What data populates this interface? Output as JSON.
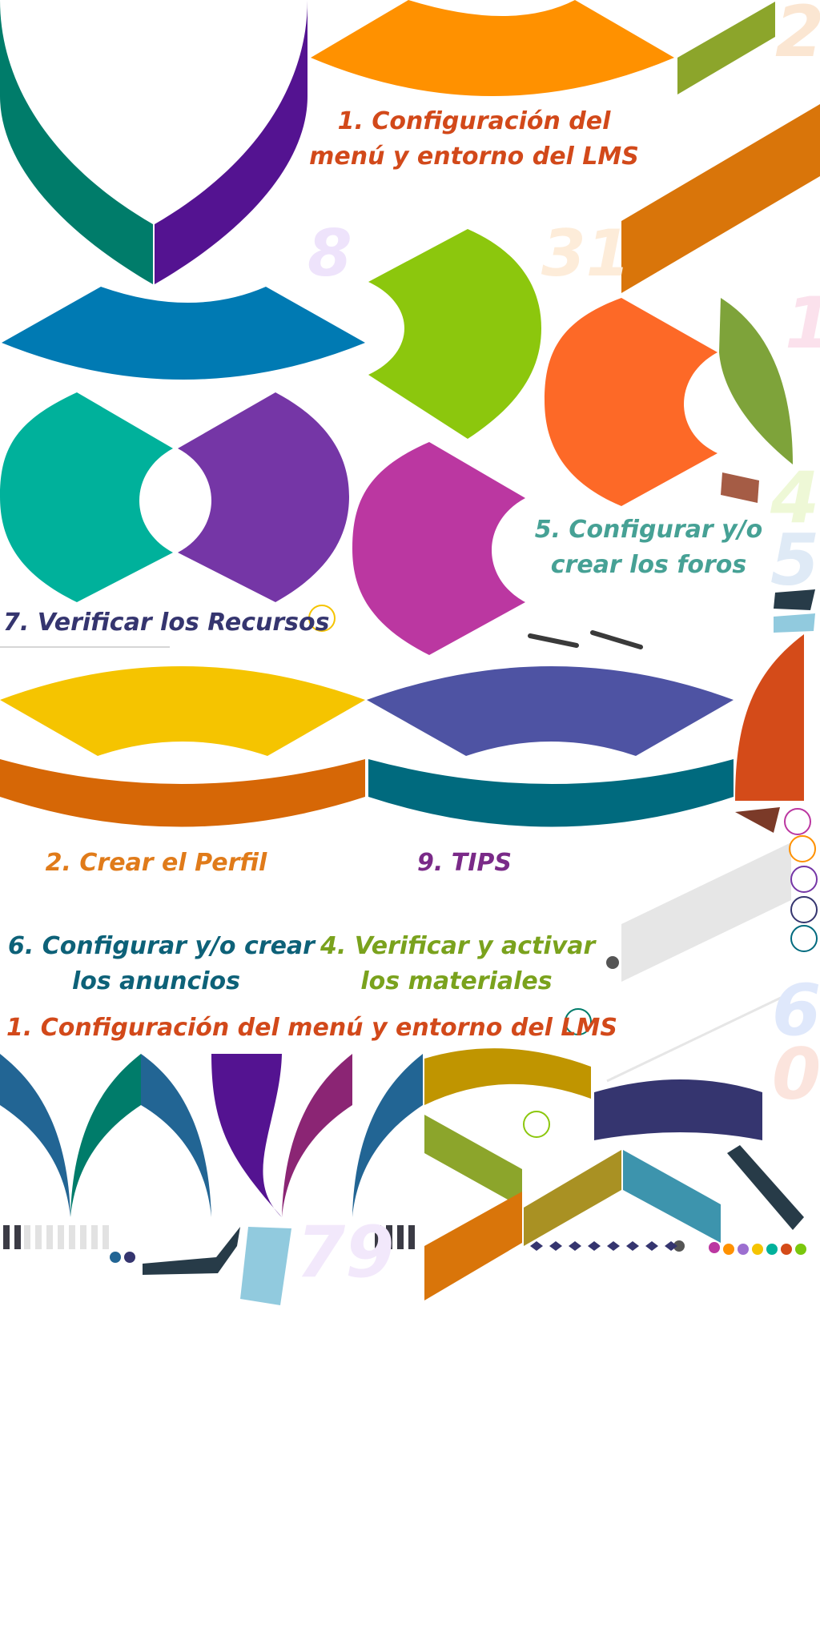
{
  "labels": {
    "config_menu_line1": "1. Configuración del",
    "config_menu_line2": "menú y entorno del LMS",
    "foros_line1": "5. Configurar y/o",
    "foros_line2": "crear los foros",
    "recursos": "7. Verificar los Recursos",
    "perfil": "2. Crear el Perfil",
    "tips": "9. TIPS",
    "anuncios_line1": "6. Configurar y/o crear",
    "anuncios_line2": "los anuncios",
    "materiales_line1": "4. Verificar y activar",
    "materiales_line2": "los materiales",
    "config_menu_full": "1. Configuración del menú y entorno del LMS"
  },
  "faded_numbers": {
    "n2": "2",
    "n8": "8",
    "n31": "31",
    "n1": "1",
    "n4": "4",
    "n5": "5",
    "n6": "6",
    "n0": "0",
    "n79": "79"
  },
  "colors": {
    "teal_dark": "#007c6a",
    "purple_dark": "#541391",
    "orange": "#ff9100",
    "olive": "#8ca52b",
    "rust": "#d9750a",
    "blue": "#007ab3",
    "lime": "#8cc70d",
    "orange_red": "#fd6927",
    "teal": "#00b19b",
    "violet": "#7536a6",
    "magenta": "#bb37a1",
    "yellow": "#f5c400",
    "indigo": "#4e53a3",
    "burnt_orange": "#d66706",
    "petrol": "#006a7e",
    "red_orange": "#d44b19",
    "label_red": "#d2491a",
    "label_teal": "#46a195",
    "label_navy": "#35356f",
    "label_orange": "#e07b1a",
    "label_purple": "#7a2a88",
    "label_petrol": "#0d6178",
    "label_green": "#7aa21d"
  }
}
